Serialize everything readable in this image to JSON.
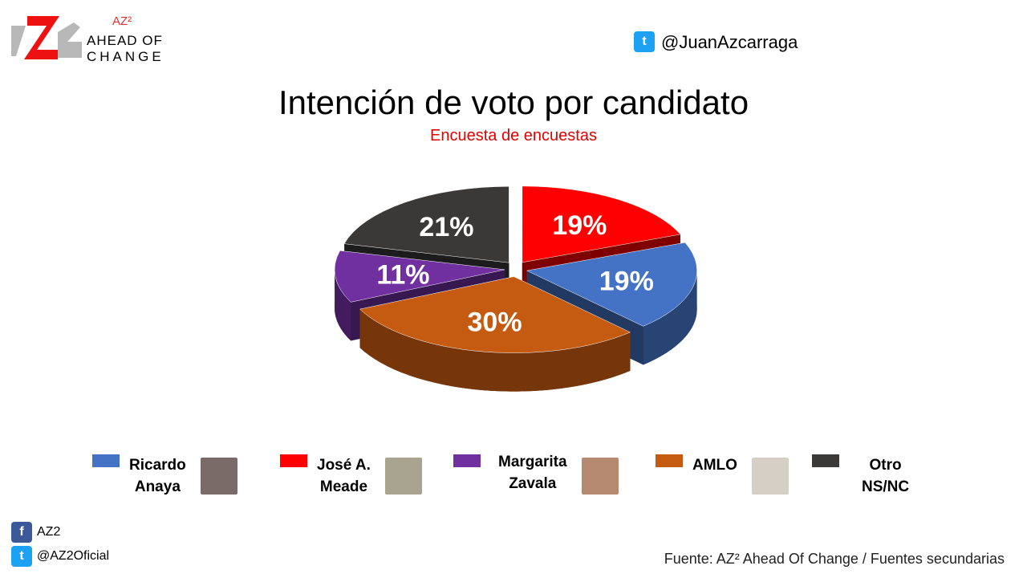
{
  "logo": {
    "mark": "AZ2",
    "sup": "AZ²",
    "line1": "AHEAD OF",
    "line2": "CHANGE"
  },
  "twitter_handle": "@JuanAzcarraga",
  "chart_data": {
    "type": "pie",
    "title": "Intención de voto por candidato",
    "subtitle": "Encuesta de encuestas",
    "categories": [
      "José A. Meade",
      "Ricardo Anaya",
      "AMLO",
      "Margarita Zavala",
      "Otro NS/NC"
    ],
    "values": [
      19,
      19,
      30,
      11,
      21
    ],
    "labels": [
      "19%",
      "19%",
      "30%",
      "11%",
      "21%"
    ],
    "colors": [
      "#ff0000",
      "#4472c4",
      "#c55a11",
      "#7030a0",
      "#3b3838"
    ],
    "legend_position": "bottom"
  },
  "legend": [
    {
      "line1": "Ricardo",
      "line2": "Anaya",
      "color": "#4472c4"
    },
    {
      "line1": "José A.",
      "line2": "Meade",
      "color": "#ff0000"
    },
    {
      "line1": "Margarita",
      "line2": "Zavala",
      "color": "#7030a0"
    },
    {
      "line1": "AMLO",
      "line2": "",
      "color": "#c55a11"
    },
    {
      "line1": "Otro",
      "line2": "NS/NC",
      "color": "#3b3838"
    }
  ],
  "social": {
    "facebook": "AZ2",
    "twitter": "@AZ2Oficial"
  },
  "source": "Fuente: AZ² Ahead Of Change / Fuentes secundarias"
}
